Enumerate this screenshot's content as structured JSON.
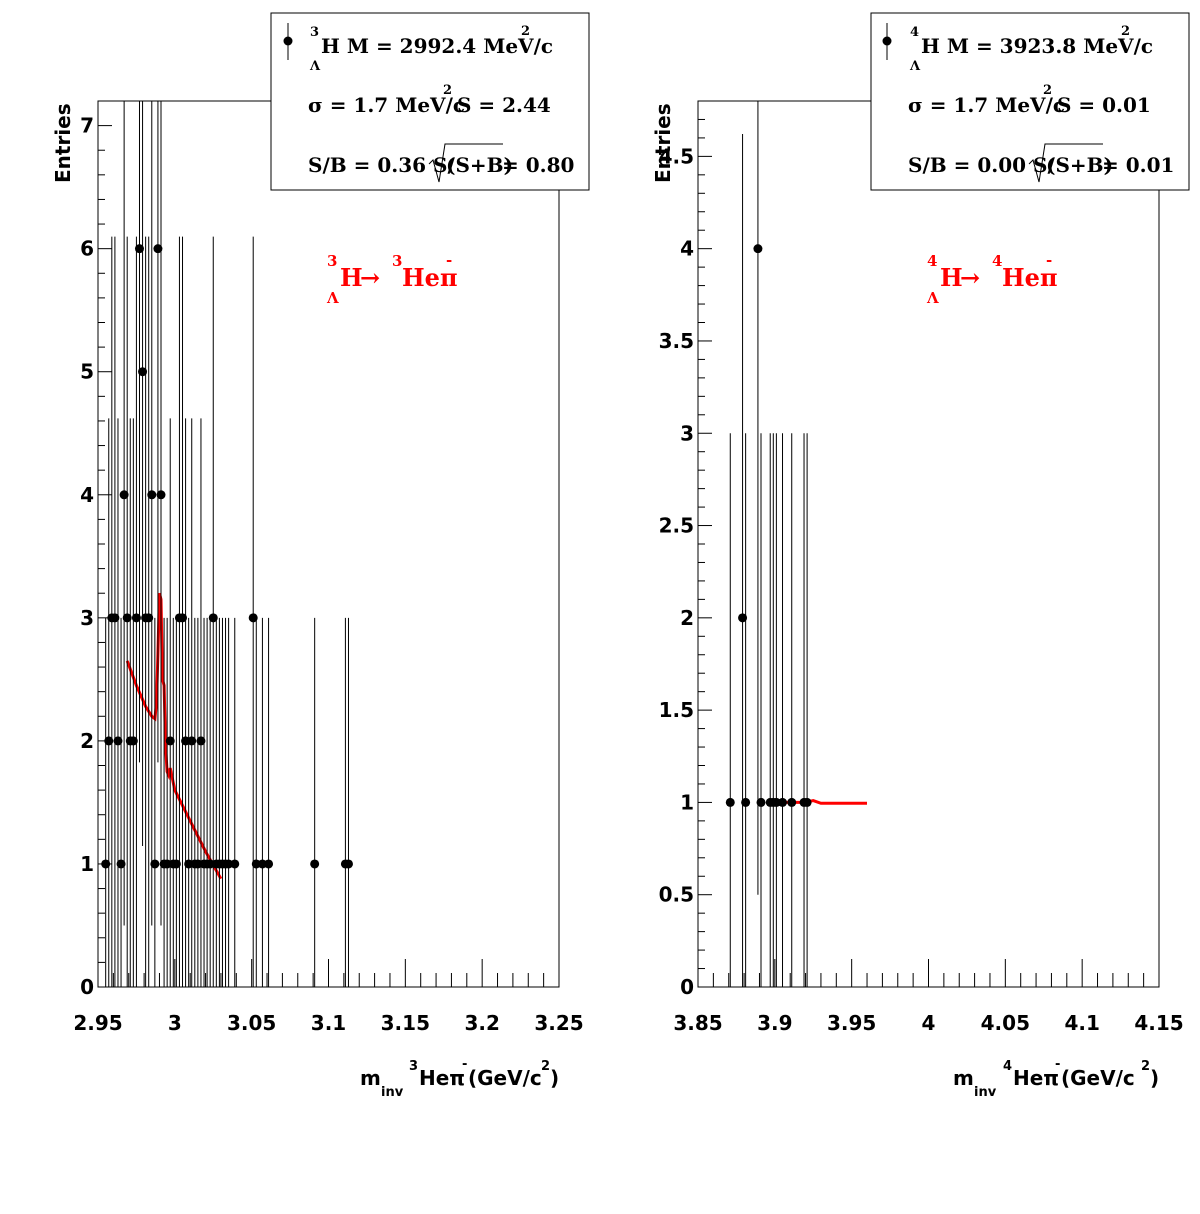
{
  "chart_data": [
    {
      "type": "scatter",
      "ylabel": "Entries",
      "xlabel": {
        "m": "m",
        "sub": "inv",
        "sup_mass": "3",
        "particle": "Heπ",
        "sup_charge": "-",
        "units": "(GeV/c",
        "units_sup": "2",
        "close": ")"
      },
      "xlim": [
        2.95,
        3.25
      ],
      "ylim": [
        0,
        7.2
      ],
      "xticks": [
        "2.95",
        "3",
        "3.05",
        "3.1",
        "3.15",
        "3.2",
        "3.25"
      ],
      "xtick_values": [
        2.95,
        3.0,
        3.05,
        3.1,
        3.15,
        3.2,
        3.25
      ],
      "yticks": [
        "0",
        "1",
        "2",
        "3",
        "4",
        "5",
        "6",
        "7"
      ],
      "ytick_values": [
        0,
        1,
        2,
        3,
        4,
        5,
        6,
        7
      ],
      "series": [
        {
          "kind": "points",
          "x": [
            2.955,
            2.957,
            2.959,
            2.961,
            2.963,
            2.965,
            2.967,
            2.969,
            2.971,
            2.973,
            2.975,
            2.977,
            2.979,
            2.981,
            2.983,
            2.985,
            2.987,
            2.989,
            2.991,
            2.993,
            2.995,
            2.997,
            2.999,
            3.001,
            3.003,
            3.005,
            3.007,
            3.009,
            3.011,
            3.013,
            3.015,
            3.017,
            3.019,
            3.021,
            3.023,
            3.025,
            3.027,
            3.029,
            3.031,
            3.033,
            3.035,
            3.039,
            3.051,
            3.053,
            3.057,
            3.061,
            3.091,
            3.111,
            3.113
          ],
          "y": [
            1,
            2,
            3,
            3,
            2,
            1,
            4,
            3,
            2,
            2,
            3,
            6,
            5,
            3,
            3,
            4,
            1,
            6,
            4,
            1,
            1,
            2,
            1,
            1,
            3,
            3,
            2,
            1,
            2,
            1,
            1,
            2,
            1,
            1,
            1,
            3,
            1,
            1,
            1,
            1,
            1,
            1,
            3,
            1,
            1,
            1,
            1,
            1,
            1
          ]
        },
        {
          "kind": "fit",
          "color": "#ff0000",
          "x": [
            2.969,
            2.975,
            2.981,
            2.985,
            2.987,
            2.988,
            2.989,
            2.99,
            2.991,
            2.992,
            2.993,
            2.994,
            2.995,
            2.996,
            2.997,
            3.0,
            3.01,
            3.02,
            3.03
          ],
          "y": [
            2.65,
            2.45,
            2.28,
            2.2,
            2.18,
            2.3,
            2.7,
            3.2,
            3.15,
            2.5,
            2.45,
            1.95,
            1.75,
            1.72,
            1.78,
            1.6,
            1.35,
            1.1,
            0.88
          ]
        }
      ],
      "legend": {
        "line1": {
          "sup": "3",
          "sub": "Λ",
          "text": "H M = 2992.4 MeV/c",
          "sup2": "2"
        },
        "line2": {
          "text_a": "σ = 1.7 MeV/c",
          "sup": "2",
          "text_b": "S = 2.44"
        },
        "line3": {
          "text_a": "S/B = 0.36  S/",
          "root": "(S+B)",
          "text_b": " = 0.80"
        }
      },
      "reaction": {
        "sup1": "3",
        "sub1": "Λ",
        "h": "H",
        "arrow": "→",
        "sup2": "3",
        "he": "Heπ",
        "charge": "-"
      }
    },
    {
      "type": "scatter",
      "ylabel": "Entries",
      "xlabel": {
        "m": "m",
        "sub": "inv",
        "sup_mass": "4",
        "particle": "Heπ",
        "sup_charge": "-",
        "units": " (GeV/c",
        "units_sup": "2",
        "close": ")"
      },
      "xlim": [
        3.85,
        4.15
      ],
      "ylim": [
        0,
        4.8
      ],
      "xticks": [
        "3.85",
        "3.9",
        "3.95",
        "4",
        "4.05",
        "4.1",
        "4.15"
      ],
      "xtick_values": [
        3.85,
        3.9,
        3.95,
        4.0,
        4.05,
        4.1,
        4.15
      ],
      "yticks": [
        "0",
        "0.5",
        "1",
        "1.5",
        "2",
        "2.5",
        "3",
        "3.5",
        "4",
        "4.5"
      ],
      "ytick_values": [
        0,
        0.5,
        1,
        1.5,
        2,
        2.5,
        3,
        3.5,
        4,
        4.5
      ],
      "series": [
        {
          "kind": "points",
          "x": [
            3.871,
            3.879,
            3.881,
            3.889,
            3.891,
            3.897,
            3.899,
            3.901,
            3.905,
            3.911,
            3.919,
            3.921
          ],
          "y": [
            1,
            2,
            1,
            4,
            1,
            1,
            1,
            1,
            1,
            1,
            1,
            1
          ]
        },
        {
          "kind": "fit",
          "color": "#ff0000",
          "x": [
            3.898,
            3.91,
            3.92,
            3.925,
            3.93,
            3.96
          ],
          "y": [
            1.0,
            1.0,
            1.0,
            1.01,
            0.995,
            0.995
          ]
        }
      ],
      "legend": {
        "line1": {
          "sup": "4",
          "sub": "Λ",
          "text": "H M = 3923.8 MeV/c",
          "sup2": "2"
        },
        "line2": {
          "text_a": "σ = 1.7 MeV/c",
          "sup": "2",
          "text_b": "S = 0.01"
        },
        "line3": {
          "text_a": "S/B = 0.00  S/",
          "root": "(S+B)",
          "text_b": " = 0.01"
        }
      },
      "reaction": {
        "sup1": "4",
        "sub1": "Λ",
        "h": "H",
        "arrow": "→",
        "sup2": "4",
        "he": "Heπ",
        "charge": "-"
      }
    }
  ]
}
